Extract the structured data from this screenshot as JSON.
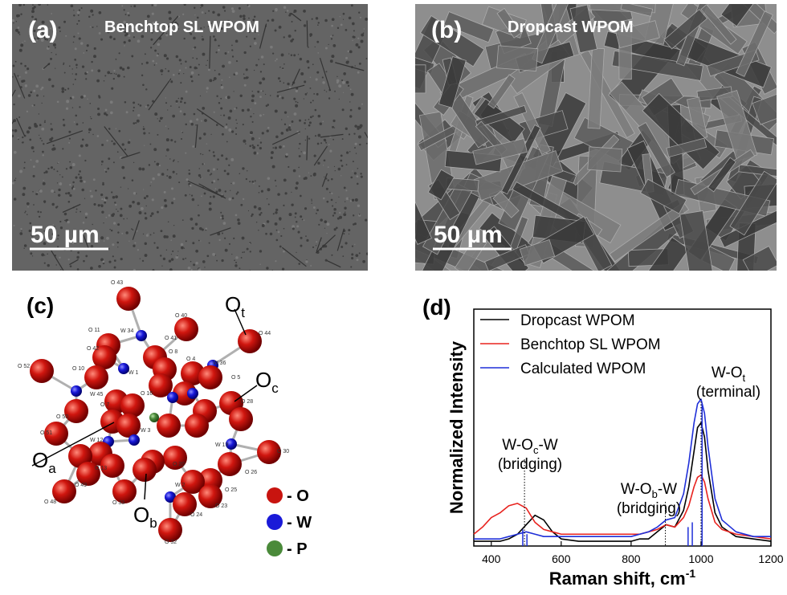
{
  "panels": {
    "a": {
      "label": "(a)",
      "title": "Benchtop SL WPOM",
      "scale_bar": "50 µm"
    },
    "b": {
      "label": "(b)",
      "title": "Dropcast WPOM",
      "scale_bar": "50 µm"
    },
    "c": {
      "label": "(c)",
      "atoms": [
        "O 43",
        "O 11",
        "W 34",
        "O 40",
        "O 42",
        "O 41",
        "O 44",
        "O 52",
        "O 10",
        "W 1",
        "O 8",
        "O 4",
        "W 36",
        "O 5",
        "W 45",
        "O 16",
        "O 28",
        "O 7",
        "O 50",
        "W 3",
        "O 51",
        "W 12",
        "W 19",
        "O 30",
        "O 13",
        "O 20",
        "O 26",
        "O 49",
        "O 33",
        "W 2",
        "O 25",
        "O 48",
        "O 24",
        "O 23",
        "O 32"
      ],
      "callouts": [
        {
          "base": "O",
          "sub": "t"
        },
        {
          "base": "O",
          "sub": "c"
        },
        {
          "base": "O",
          "sub": "a"
        },
        {
          "base": "O",
          "sub": "b"
        }
      ],
      "legend": [
        {
          "text": "- O",
          "color": "#c8140f"
        },
        {
          "text": "- W",
          "color": "#1a1ad8"
        },
        {
          "text": "- P",
          "color": "#4a8a3a"
        }
      ]
    },
    "d": {
      "label": "(d)"
    }
  },
  "chart_data": {
    "type": "line",
    "xlabel": {
      "text": "Raman shift, cm",
      "sup": "-1"
    },
    "ylabel": "Normalized Intensity",
    "x": [
      350,
      375,
      400,
      425,
      450,
      475,
      500,
      525,
      550,
      575,
      600,
      650,
      700,
      750,
      800,
      825,
      850,
      875,
      900,
      925,
      950,
      965,
      980,
      990,
      1000,
      1010,
      1020,
      1040,
      1060,
      1100,
      1150,
      1200
    ],
    "xlim": [
      350,
      1200
    ],
    "xticks": [
      400,
      600,
      800,
      1000,
      1200
    ],
    "ylim": [
      0,
      1
    ],
    "legend": "upper left",
    "series": [
      {
        "name": "Dropcast WPOM",
        "color": "#000000",
        "values": [
          0.02,
          0.02,
          0.02,
          0.02,
          0.03,
          0.05,
          0.09,
          0.13,
          0.11,
          0.06,
          0.03,
          0.02,
          0.02,
          0.02,
          0.02,
          0.03,
          0.03,
          0.06,
          0.09,
          0.08,
          0.15,
          0.25,
          0.4,
          0.5,
          0.52,
          0.46,
          0.32,
          0.14,
          0.08,
          0.04,
          0.03,
          0.02
        ]
      },
      {
        "name": "Benchtop SL WPOM",
        "color": "#e8231f",
        "values": [
          0.05,
          0.08,
          0.12,
          0.14,
          0.17,
          0.18,
          0.16,
          0.1,
          0.07,
          0.06,
          0.05,
          0.05,
          0.05,
          0.05,
          0.05,
          0.05,
          0.06,
          0.07,
          0.09,
          0.08,
          0.12,
          0.17,
          0.25,
          0.29,
          0.3,
          0.27,
          0.2,
          0.1,
          0.07,
          0.05,
          0.04,
          0.03
        ]
      },
      {
        "name": "Calculated WPOM",
        "color": "#1f2fd8",
        "values": [
          0.03,
          0.03,
          0.03,
          0.03,
          0.04,
          0.05,
          0.06,
          0.05,
          0.04,
          0.04,
          0.04,
          0.04,
          0.04,
          0.04,
          0.04,
          0.05,
          0.06,
          0.08,
          0.11,
          0.12,
          0.22,
          0.35,
          0.52,
          0.6,
          0.62,
          0.56,
          0.42,
          0.2,
          0.11,
          0.06,
          0.04,
          0.04
        ]
      }
    ],
    "sticks": {
      "color": "#1f2fd8",
      "x": [
        490,
        502,
        963,
        975,
        1003
      ],
      "values": [
        0.07,
        0.05,
        0.08,
        0.1,
        0.6
      ]
    },
    "annotations": [
      {
        "x": 495,
        "lines": [
          {
            "pre": "W-O",
            "sub": "c",
            "post": "-W"
          },
          {
            "pre": "(bridging)"
          }
        ]
      },
      {
        "x": 898,
        "lines": [
          {
            "pre": "W-O",
            "sub": "b",
            "post": "-W"
          },
          {
            "pre": "(bridging)"
          }
        ]
      },
      {
        "x": 1000,
        "lines": [
          {
            "pre": "W-O",
            "sub": "t"
          },
          {
            "pre": "(terminal)"
          }
        ]
      }
    ]
  }
}
